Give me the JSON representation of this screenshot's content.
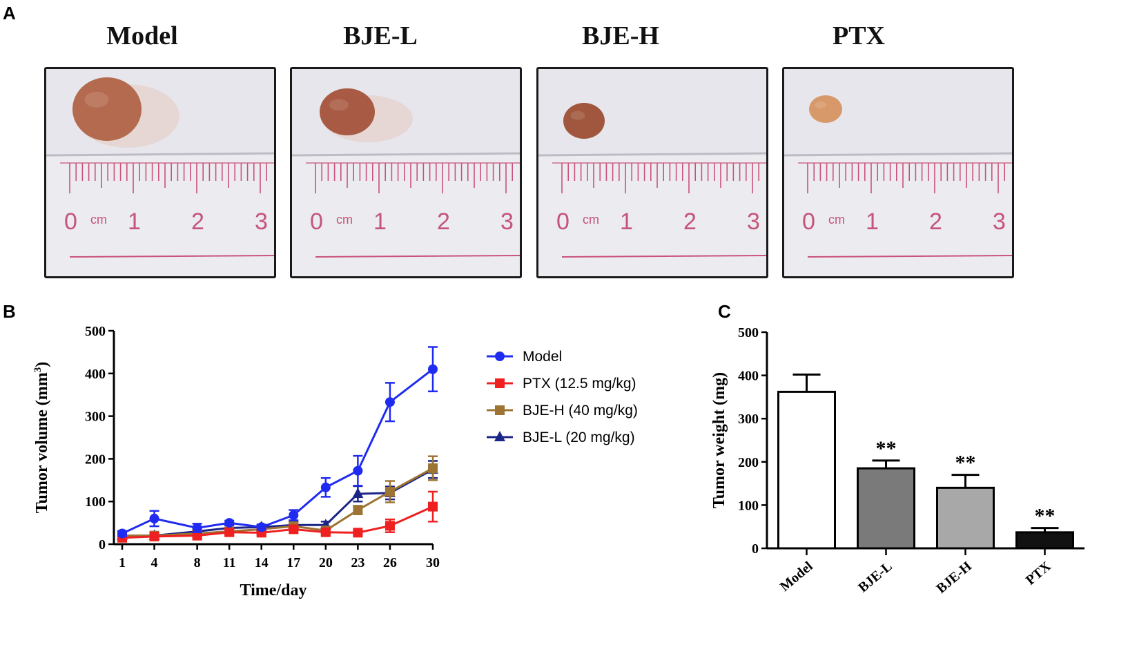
{
  "panels": {
    "a": "A",
    "b": "B",
    "c": "C"
  },
  "photos": [
    {
      "title": "Model",
      "tumor": "large"
    },
    {
      "title": "BJE-L",
      "tumor": "medium"
    },
    {
      "title": "BJE-H",
      "tumor": "small"
    },
    {
      "title": "PTX",
      "tumor": "smallest"
    }
  ],
  "ruler": {
    "unit": "cm",
    "labels": [
      "0",
      "1",
      "2",
      "3"
    ]
  },
  "colors": {
    "model": "#1f2bf0",
    "ptx": "#ee2020",
    "bje_h": "#9c7433",
    "bje_l": "#1b2487",
    "bar_model": "#ffffff",
    "bar_bje_l": "#7a7a7a",
    "bar_bje_h": "#a8a8a8",
    "bar_ptx": "#111111"
  },
  "chart_data": [
    {
      "type": "line",
      "xlabel": "Time/day",
      "ylabel": "Tumor volume (mm³)",
      "ylabel_main": "Tumor volume (mm",
      "ylabel_sup": "3",
      "ylabel_close": ")",
      "x": [
        1,
        4,
        8,
        11,
        14,
        17,
        20,
        23,
        26,
        30
      ],
      "xticks": [
        "1",
        "4",
        "8",
        "11",
        "14",
        "17",
        "20",
        "23",
        "26",
        "30"
      ],
      "ylim": [
        0,
        500
      ],
      "yticks": [
        "0",
        "100",
        "200",
        "300",
        "400",
        "500"
      ],
      "series": [
        {
          "name": "Model",
          "marker": "circle",
          "values": [
            25,
            60,
            38,
            50,
            40,
            68,
            133,
            172,
            333,
            410
          ],
          "errors": [
            6,
            18,
            10,
            5,
            5,
            12,
            22,
            35,
            45,
            52
          ]
        },
        {
          "name": "PTX (12.5 mg/kg)",
          "marker": "square",
          "values": [
            15,
            18,
            20,
            28,
            27,
            35,
            28,
            27,
            43,
            88
          ],
          "errors": [
            4,
            5,
            5,
            6,
            5,
            6,
            6,
            5,
            15,
            35
          ]
        },
        {
          "name": "BJE-H (40 mg/kg)",
          "marker": "square",
          "values": [
            20,
            20,
            25,
            30,
            35,
            42,
            32,
            80,
            123,
            178
          ],
          "errors": [
            4,
            4,
            5,
            5,
            6,
            8,
            6,
            10,
            25,
            28
          ]
        },
        {
          "name": "BJE-L (20 mg/kg)",
          "marker": "triangle",
          "values": [
            20,
            20,
            30,
            38,
            40,
            45,
            45,
            118,
            120,
            175
          ],
          "errors": [
            4,
            4,
            5,
            6,
            6,
            8,
            8,
            18,
            15,
            20
          ]
        }
      ]
    },
    {
      "type": "bar",
      "ylabel": "Tumor weight (mg)",
      "categories": [
        "Model",
        "BJE-L",
        "BJE-H",
        "PTX"
      ],
      "values": [
        362,
        185,
        140,
        37
      ],
      "errors": [
        40,
        18,
        30,
        10
      ],
      "annotations": [
        "",
        "**",
        "**",
        "**"
      ],
      "ylim": [
        0,
        500
      ],
      "yticks": [
        "0",
        "100",
        "200",
        "300",
        "400",
        "500"
      ]
    }
  ]
}
